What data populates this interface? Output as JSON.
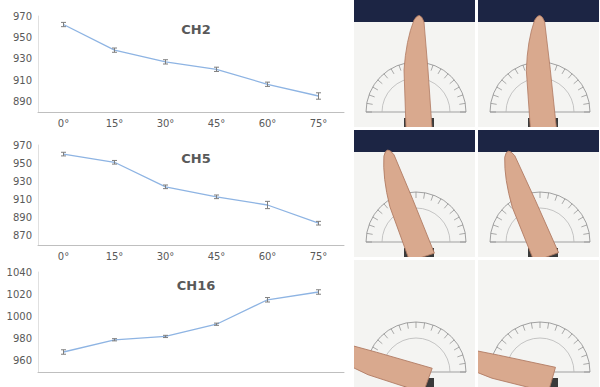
{
  "chart_data": [
    {
      "type": "line",
      "title": "CH2",
      "categories": [
        "0°",
        "15°",
        "30°",
        "45°",
        "60°",
        "75°"
      ],
      "values": [
        962,
        938,
        927,
        920,
        906,
        895
      ],
      "errors": [
        2,
        2,
        2,
        2,
        2,
        3
      ],
      "color": "#8eb4e3",
      "marker": "none",
      "ylim": [
        880,
        970
      ],
      "yticks": [
        890,
        910,
        930,
        950,
        970
      ],
      "grid": false
    },
    {
      "type": "line",
      "title": "CH5",
      "categories": [
        "0°",
        "15°",
        "30°",
        "45°",
        "60°",
        "75°"
      ],
      "values": [
        960,
        951,
        924,
        913,
        904,
        884
      ],
      "errors": [
        2,
        2,
        2,
        2,
        4,
        2
      ],
      "color": "#8eb4e3",
      "marker": "none",
      "ylim": [
        860,
        970
      ],
      "yticks": [
        870,
        890,
        910,
        930,
        950,
        970
      ],
      "grid": false
    },
    {
      "type": "line",
      "title": "CH16",
      "categories": [
        null,
        null,
        null,
        null,
        null,
        null
      ],
      "values": [
        968,
        979,
        982,
        993,
        1015,
        1022
      ],
      "errors": [
        2,
        1,
        1,
        1,
        2,
        2
      ],
      "color": "#8eb4e3",
      "marker": "none",
      "ylim": [
        950,
        1040
      ],
      "yticks": [
        960,
        980,
        1000,
        1020,
        1040
      ],
      "grid": false
    }
  ]
}
